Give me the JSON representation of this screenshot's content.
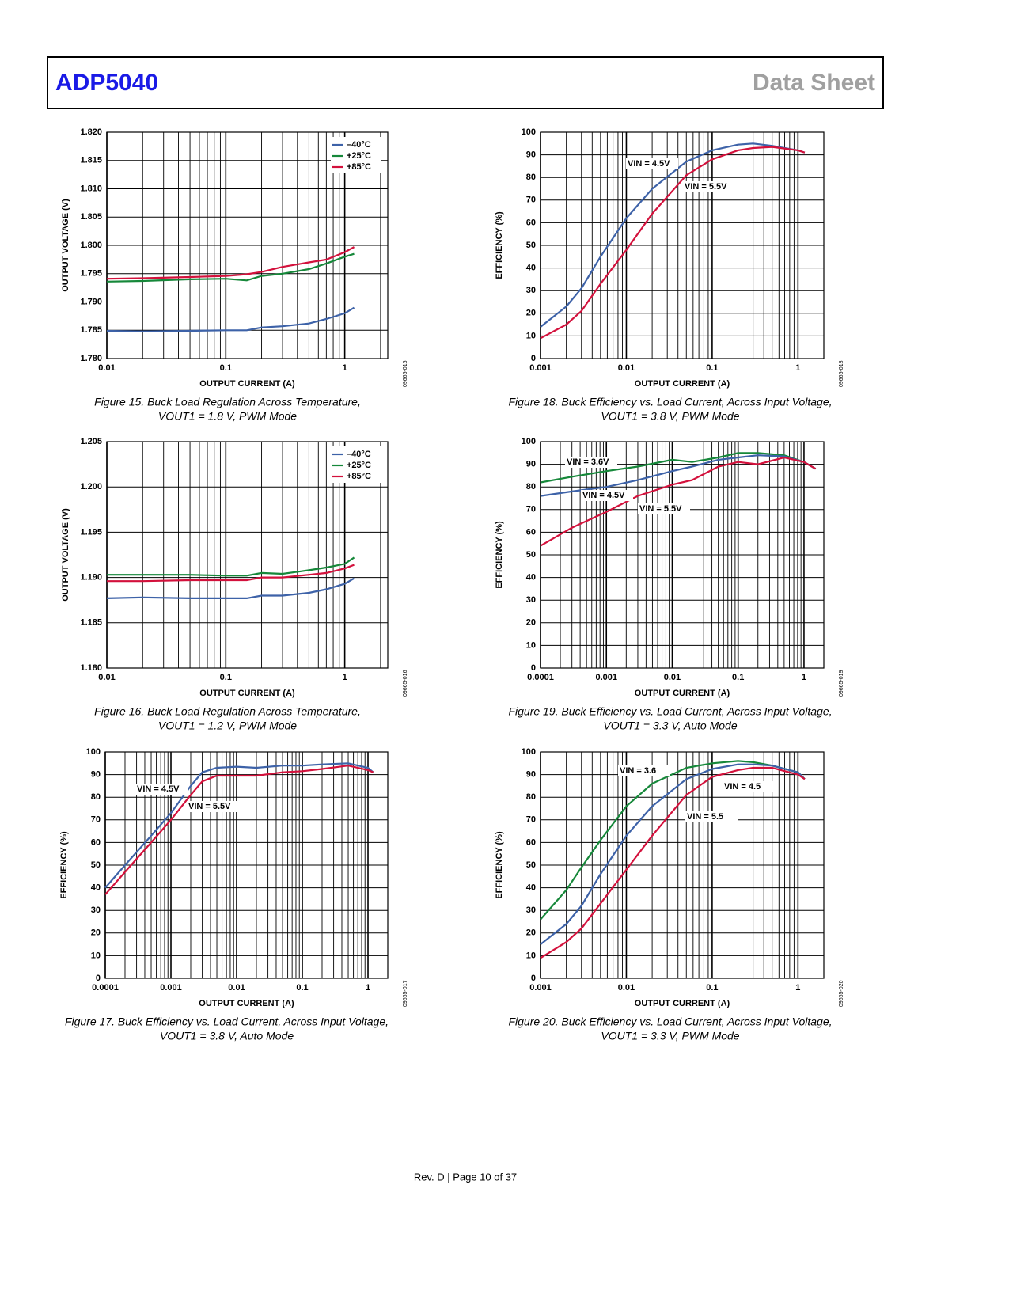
{
  "header": {
    "title": "ADP5040",
    "subtitle": "Data Sheet"
  },
  "footer": "Rev. D | Page 10 of 37",
  "chart_data": [
    {
      "type": "line",
      "caption": [
        "Figure 15. Buck Load Regulation Across Temperature,",
        "VOUT1 = 1.8 V, PWM Mode"
      ],
      "code": "09665-015",
      "x_label": "OUTPUT CURRENT (A)",
      "y_label": "OUTPUT VOLTAGE (V)",
      "log_x": true,
      "grid": true,
      "legend": "upper right",
      "xlim": [
        0.01,
        2.3
      ],
      "xticks": [
        0.01,
        0.1,
        1
      ],
      "ylim": [
        1.78,
        1.82
      ],
      "yticks": [
        {
          "value": 1.78,
          "label": "1.780"
        },
        {
          "value": 1.785,
          "label": "1.785"
        },
        {
          "value": 1.79,
          "label": "1.790"
        },
        {
          "value": 1.795,
          "label": "1.795"
        },
        {
          "value": 1.8,
          "label": "1.800"
        },
        {
          "value": 1.805,
          "label": "1.805"
        },
        {
          "value": 1.81,
          "label": "1.810"
        },
        {
          "value": 1.815,
          "label": "1.815"
        },
        {
          "value": 1.82,
          "label": "1.820"
        }
      ],
      "x": [
        0.01,
        0.02,
        0.05,
        0.1,
        0.15,
        0.2,
        0.3,
        0.5,
        0.7,
        1,
        1.2
      ],
      "series": [
        {
          "name": "–40°C",
          "color": "#3d62a8",
          "values": [
            1.7849,
            1.7848,
            1.7849,
            1.785,
            1.785,
            1.7855,
            1.7857,
            1.7862,
            1.787,
            1.788,
            1.789
          ]
        },
        {
          "name": "+25°C",
          "color": "#16883a",
          "values": [
            1.7936,
            1.7937,
            1.794,
            1.7941,
            1.7938,
            1.7946,
            1.795,
            1.7958,
            1.7968,
            1.798,
            1.7985
          ]
        },
        {
          "name": "+85°C",
          "color": "#d3113c",
          "values": [
            1.7941,
            1.7942,
            1.7944,
            1.7946,
            1.7949,
            1.7953,
            1.7962,
            1.797,
            1.7975,
            1.7988,
            1.7997
          ]
        }
      ]
    },
    {
      "type": "line",
      "caption": [
        "Figure 16. Buck Load Regulation Across Temperature,",
        "VOUT1 = 1.2 V, PWM Mode"
      ],
      "code": "09665-016",
      "x_label": "OUTPUT CURRENT (A)",
      "y_label": "OUTPUT VOLTAGE (V)",
      "log_x": true,
      "grid": true,
      "legend": "upper right",
      "xlim": [
        0.01,
        2.3
      ],
      "xticks": [
        0.01,
        0.1,
        1
      ],
      "ylim": [
        1.18,
        1.205
      ],
      "yticks": [
        {
          "value": 1.18,
          "label": "1.180"
        },
        {
          "value": 1.185,
          "label": "1.185"
        },
        {
          "value": 1.19,
          "label": "1.190"
        },
        {
          "value": 1.195,
          "label": "1.195"
        },
        {
          "value": 1.2,
          "label": "1.200"
        },
        {
          "value": 1.205,
          "label": "1.205"
        }
      ],
      "x": [
        0.01,
        0.02,
        0.05,
        0.1,
        0.15,
        0.2,
        0.3,
        0.5,
        0.7,
        1,
        1.2
      ],
      "series": [
        {
          "name": "–40°C",
          "color": "#3d62a8",
          "values": [
            1.1877,
            1.1878,
            1.1877,
            1.1877,
            1.1877,
            1.188,
            1.188,
            1.1883,
            1.1887,
            1.1893,
            1.1899
          ]
        },
        {
          "name": "+25°C",
          "color": "#16883a",
          "values": [
            1.1903,
            1.1903,
            1.1903,
            1.1902,
            1.1902,
            1.1905,
            1.1904,
            1.1908,
            1.1911,
            1.1915,
            1.1922
          ]
        },
        {
          "name": "+85°C",
          "color": "#d3113c",
          "values": [
            1.1896,
            1.1896,
            1.1897,
            1.1897,
            1.1897,
            1.19,
            1.19,
            1.1903,
            1.1905,
            1.191,
            1.1914
          ]
        }
      ]
    },
    {
      "type": "line",
      "caption": [
        "Figure 17. Buck Efficiency vs. Load Current, Across Input Voltage,",
        "VOUT1 = 3.8 V, Auto Mode"
      ],
      "code": "09665-017",
      "x_label": "OUTPUT CURRENT (A)",
      "y_label": "EFFICIENCY (%)",
      "log_x": true,
      "grid": true,
      "legend": "inline",
      "xlim": [
        0.0001,
        2
      ],
      "xticks": [
        0.0001,
        0.001,
        0.01,
        0.1,
        1
      ],
      "ylim": [
        0,
        100
      ],
      "yticks": [
        0,
        10,
        20,
        30,
        40,
        50,
        60,
        70,
        80,
        90,
        100
      ],
      "x": [
        0.0001,
        0.0002,
        0.0005,
        0.001,
        0.002,
        0.003,
        0.005,
        0.01,
        0.02,
        0.05,
        0.1,
        0.2,
        0.5,
        1,
        1.2
      ],
      "series": [
        {
          "name": "VIN = 4.5V",
          "color": "#3d62a8",
          "values": [
            40,
            50,
            63,
            73,
            85,
            91,
            93,
            93.5,
            93,
            94,
            94,
            94.5,
            95,
            93,
            91
          ]
        },
        {
          "name": "VIN = 5.5V",
          "color": "#d3113c",
          "values": [
            37,
            47,
            60,
            70,
            81,
            87,
            89.5,
            89.5,
            89.5,
            91,
            91.5,
            92.5,
            94,
            92,
            91
          ]
        }
      ]
    },
    {
      "type": "line",
      "caption": [
        "Figure 18. Buck Efficiency vs. Load Current, Across Input Voltage,",
        "VOUT1 = 3.8 V, PWM Mode"
      ],
      "code": "09665-018",
      "x_label": "OUTPUT CURRENT (A)",
      "y_label": "EFFICIENCY (%)",
      "log_x": true,
      "grid": true,
      "legend": "inline",
      "xlim": [
        0.001,
        2
      ],
      "xticks": [
        0.001,
        0.01,
        0.1,
        1
      ],
      "ylim": [
        0,
        100
      ],
      "yticks": [
        0,
        10,
        20,
        30,
        40,
        50,
        60,
        70,
        80,
        90,
        100
      ],
      "x": [
        0.001,
        0.002,
        0.003,
        0.005,
        0.01,
        0.02,
        0.05,
        0.1,
        0.2,
        0.3,
        0.5,
        1,
        1.2
      ],
      "series": [
        {
          "name": "VIN = 4.5V",
          "color": "#3d62a8",
          "values": [
            14,
            23,
            31,
            45,
            62,
            75,
            87,
            92,
            94.5,
            95,
            94,
            92,
            91
          ]
        },
        {
          "name": "VIN = 5.5V",
          "color": "#d3113c",
          "values": [
            9,
            15,
            21,
            33,
            48,
            64,
            81,
            88,
            92,
            93,
            93.5,
            92,
            91
          ]
        }
      ]
    },
    {
      "type": "line",
      "caption": [
        "Figure 19. Buck Efficiency vs. Load Current, Across Input Voltage,",
        "VOUT1 = 3.3 V, Auto Mode"
      ],
      "code": "09665-019",
      "x_label": "OUTPUT CURRENT (A)",
      "y_label": "EFFICIENCY (%)",
      "log_x": true,
      "grid": true,
      "legend": "inline",
      "xlim": [
        0.0001,
        2
      ],
      "xticks": [
        0.0001,
        0.001,
        0.01,
        0.1,
        1
      ],
      "ylim": [
        0,
        100
      ],
      "yticks": [
        0,
        10,
        20,
        30,
        40,
        50,
        60,
        70,
        80,
        90,
        100
      ],
      "x": [
        0.0001,
        0.0003,
        0.001,
        0.003,
        0.01,
        0.02,
        0.05,
        0.1,
        0.2,
        0.5,
        1,
        1.5
      ],
      "series": [
        {
          "name": "VIN = 3.6V",
          "color": "#16883a",
          "values": [
            82,
            84.5,
            87,
            89,
            92,
            91,
            93,
            95,
            95,
            94,
            91,
            88
          ]
        },
        {
          "name": "VIN = 4.5V",
          "color": "#3d62a8",
          "values": [
            76,
            78,
            80,
            83,
            87,
            89,
            92,
            93,
            94,
            93.5,
            91,
            88
          ]
        },
        {
          "name": "VIN = 5.5V",
          "color": "#d3113c",
          "values": [
            54,
            62,
            69,
            76,
            81,
            83,
            89,
            91,
            90,
            93,
            91,
            88
          ]
        }
      ]
    },
    {
      "type": "line",
      "caption": [
        "Figure 20. Buck Efficiency vs. Load Current, Across Input Voltage,",
        "VOUT1 = 3.3 V, PWM Mode"
      ],
      "code": "09665-020",
      "x_label": "OUTPUT CURRENT (A)",
      "y_label": "EFFICIENCY (%)",
      "log_x": true,
      "grid": true,
      "legend": "inline",
      "xlim": [
        0.001,
        2
      ],
      "xticks": [
        0.001,
        0.01,
        0.1,
        1
      ],
      "ylim": [
        0,
        100
      ],
      "yticks": [
        0,
        10,
        20,
        30,
        40,
        50,
        60,
        70,
        80,
        90,
        100
      ],
      "x": [
        0.001,
        0.002,
        0.003,
        0.005,
        0.01,
        0.02,
        0.05,
        0.1,
        0.2,
        0.3,
        0.5,
        1,
        1.2
      ],
      "series": [
        {
          "name": "VIN = 3.6",
          "color": "#16883a",
          "values": [
            26,
            39,
            49,
            61,
            76,
            86,
            93,
            95,
            96,
            95.5,
            94,
            91,
            88
          ]
        },
        {
          "name": "VIN = 4.5",
          "color": "#3d62a8",
          "values": [
            15,
            24,
            32,
            46,
            63,
            76,
            88,
            92.5,
            94.5,
            94.5,
            94,
            91,
            88
          ]
        },
        {
          "name": "VIN = 5.5",
          "color": "#d3113c",
          "values": [
            9,
            16,
            22,
            33,
            48,
            63,
            81,
            89,
            92,
            93,
            93,
            90,
            88
          ]
        }
      ]
    }
  ]
}
